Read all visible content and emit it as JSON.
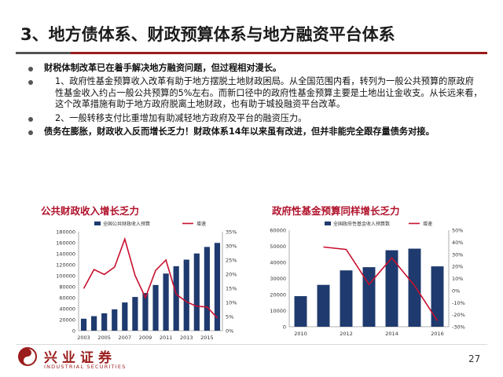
{
  "slide": {
    "title": "3、地方债体系、财政预算体系与地方融资平台体系",
    "page_number": "27"
  },
  "bullets": [
    {
      "text": "财税体制改革已在着手解决地方融资问题，但过程相对漫长。",
      "bold": true,
      "dot": true
    },
    {
      "text": "1、政府性基金预算收入改革有助于地方摆脱土地财政困局。从全国范围内看，转列为一般公共预算的原政府性基金收入约占一般公共预算的5%左右。而新口径中的政府性基金预算主要是土地出让金收支。从长远来看，这个改革措施有助于地方政府脱离土地财政，也有助于城投融资平台改革。",
      "bold": false,
      "dot": true
    },
    {
      "text": "2、一般转移支付比重增加有助减轻地方政府及平台的融资压力。",
      "bold": false,
      "dot": true
    },
    {
      "text": "债务在膨胀，财政收入反而增长乏力！财政体系14年以来虽有改进，但并非能完全跟存量债务对接。",
      "bold": true,
      "dot": true
    }
  ],
  "brand": {
    "name_cn": "兴业证券",
    "name_en": "INDUSTRIAL SECURITIES"
  },
  "colors": {
    "bar": "#1f3a6e",
    "line": "#c8102e",
    "title_red": "#b0122b",
    "brand": "#9b1c1c"
  },
  "chart_data": [
    {
      "type": "bar",
      "title": "公共财政收入增长乏力",
      "legend": [
        "全国公共财政收入预算",
        "增速"
      ],
      "x": [
        2003,
        2004,
        2005,
        2006,
        2007,
        2008,
        2009,
        2010,
        2011,
        2012,
        2013,
        2014,
        2015,
        2016
      ],
      "x_ticks": [
        "2003",
        "2005",
        "2007",
        "2009",
        "2011",
        "2013",
        "2015"
      ],
      "series": [
        {
          "name": "全国公共财政收入预算",
          "type": "bar",
          "axis": "left",
          "values": [
            21700,
            26400,
            31600,
            38800,
            51300,
            61300,
            68500,
            83100,
            103900,
            117200,
            129200,
            140400,
            152300,
            159600
          ]
        },
        {
          "name": "增速",
          "type": "line",
          "axis": "right",
          "values": [
            14.9,
            21.6,
            19.9,
            22.5,
            32.4,
            19.5,
            11.7,
            21.3,
            25.0,
            12.9,
            10.2,
            8.6,
            8.4,
            4.5
          ]
        }
      ],
      "left_axis": {
        "ylim": [
          0,
          180000
        ],
        "ticks": [
          "0",
          "20000",
          "40000",
          "60000",
          "80000",
          "100000",
          "120000",
          "140000",
          "160000",
          "180000"
        ]
      },
      "right_axis": {
        "ylim": [
          0,
          35
        ],
        "ticks": [
          "0%",
          "5%",
          "10%",
          "15%",
          "20%",
          "25%",
          "30%",
          "35%"
        ]
      },
      "grid": false,
      "legend_position": "top"
    },
    {
      "type": "bar",
      "title": "政府性基金预算同样增长乏力",
      "legend": [
        "全国政府性基金收入预算数",
        "增速"
      ],
      "x": [
        2010,
        2011,
        2012,
        2013,
        2014,
        2015,
        2016
      ],
      "x_ticks": [
        "2010",
        "2012",
        "2014",
        "2016"
      ],
      "series": [
        {
          "name": "全国政府性基金收入预算数",
          "type": "bar",
          "axis": "left",
          "values": [
            19000,
            26000,
            35000,
            37000,
            47500,
            48500,
            37500
          ]
        },
        {
          "name": "增速",
          "type": "line",
          "axis": "right",
          "values": [
            null,
            36,
            34,
            5,
            27,
            4,
            -25
          ]
        }
      ],
      "left_axis": {
        "ylim": [
          0,
          60000
        ],
        "ticks": [
          "0",
          "10000",
          "20000",
          "30000",
          "40000",
          "50000",
          "60000"
        ]
      },
      "right_axis": {
        "ylim": [
          -30,
          50
        ],
        "ticks": [
          "-30%",
          "-20%",
          "-10%",
          "0%",
          "10%",
          "20%",
          "30%",
          "40%",
          "50%"
        ]
      },
      "grid": false,
      "legend_position": "top"
    }
  ]
}
